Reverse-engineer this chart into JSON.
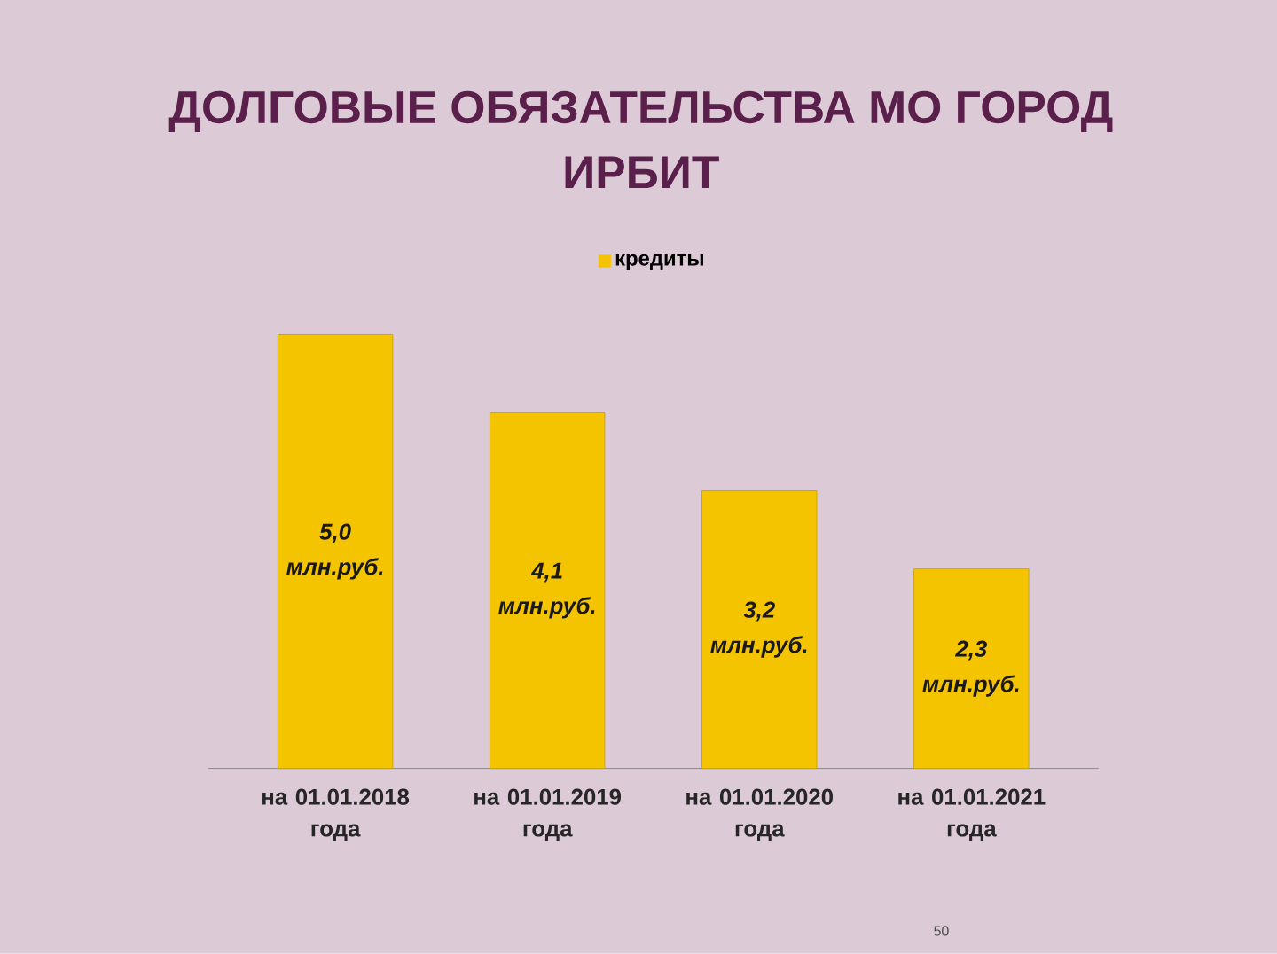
{
  "chart_data": {
    "type": "bar",
    "title": "ДОЛГОВЫЕ ОБЯЗАТЕЛЬСТВА МО ГОРОД ИРБИТ",
    "categories": [
      "на 01.01.2018 года",
      "на 01.01.2019 года",
      "на 01.01.2020 года",
      "на 01.01.2021 года"
    ],
    "series": [
      {
        "name": "кредиты",
        "color": "#f5c400",
        "values": [
          5.0,
          4.1,
          3.2,
          2.3
        ],
        "value_labels": [
          "5,0 млн.руб.",
          "4,1 млн.руб.",
          "3,2 млн.руб.",
          "2,3 млн.руб."
        ]
      }
    ],
    "legend": "top",
    "annotations": [
      "50"
    ]
  }
}
